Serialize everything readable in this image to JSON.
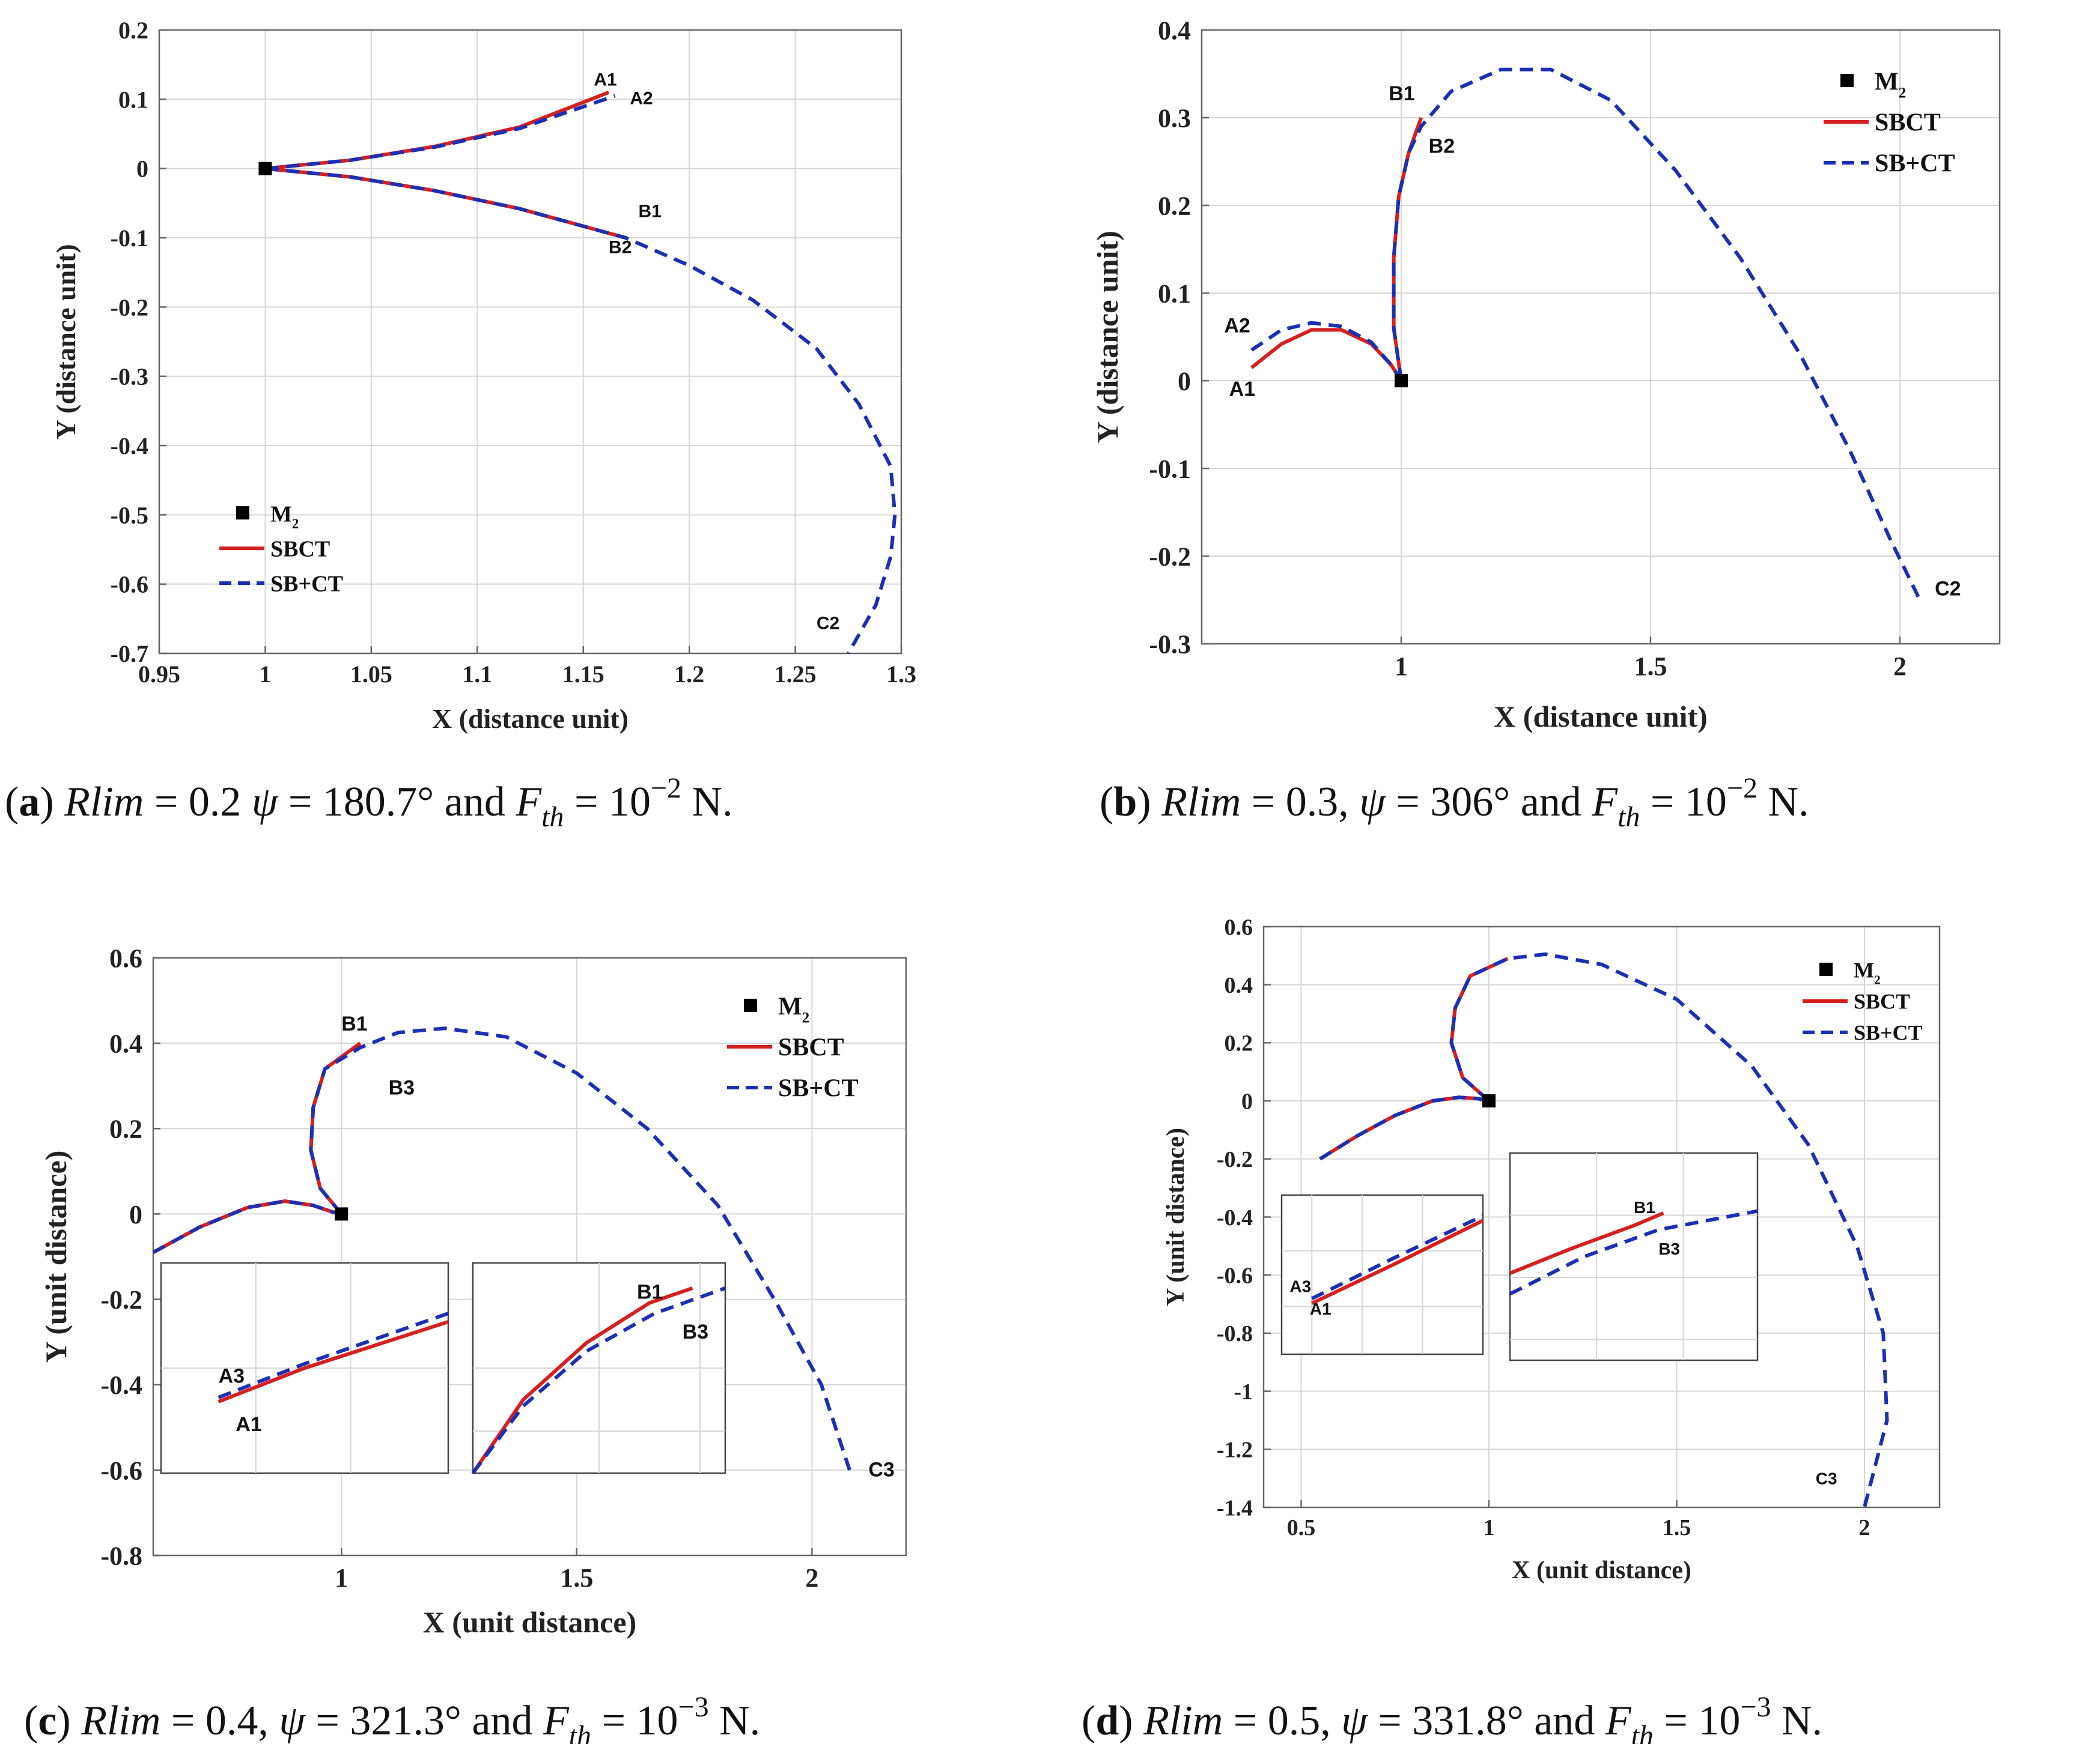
{
  "colors": {
    "sbct": "#d61f1f",
    "sbct_plus": "#1c2fb4",
    "grid": "#d6d6d6",
    "axis": "#666666",
    "marker": "#000000"
  },
  "chart_data": [
    {
      "id": "a",
      "type": "line",
      "xlabel": "X (distance unit)",
      "ylabel": "Y (distance unit)",
      "xlim": [
        0.95,
        1.3
      ],
      "ylim": [
        -0.7,
        0.2
      ],
      "xticks": [
        "0.95",
        "1",
        "1.05",
        "1.1",
        "1.15",
        "1.2",
        "1.25",
        "1.3"
      ],
      "yticks": [
        "0.2",
        "0.1",
        "0",
        "-0.1",
        "-0.2",
        "-0.3",
        "-0.4",
        "-0.5",
        "-0.6",
        "-0.7"
      ],
      "grid": true,
      "legend": {
        "position": "bottom-left",
        "marker": "M",
        "marker_sub": "2",
        "entries": [
          "SBCT",
          "SB+CT"
        ]
      },
      "marker_point": [
        1,
        0
      ],
      "series": [
        {
          "name": "SBCT",
          "segments": [
            [
              [
                1.0,
                0.0
              ],
              [
                1.04,
                0.012
              ],
              [
                1.08,
                0.032
              ],
              [
                1.12,
                0.06
              ],
              [
                1.162,
                0.11
              ]
            ],
            [
              [
                1.0,
                0.0
              ],
              [
                1.04,
                -0.012
              ],
              [
                1.08,
                -0.032
              ],
              [
                1.12,
                -0.058
              ],
              [
                1.17,
                -0.1
              ]
            ]
          ]
        },
        {
          "name": "SB+CT",
          "segments": [
            [
              [
                1.0,
                0.0
              ],
              [
                1.04,
                0.012
              ],
              [
                1.08,
                0.031
              ],
              [
                1.12,
                0.058
              ],
              [
                1.165,
                0.105
              ]
            ],
            [
              [
                1.0,
                0.0
              ],
              [
                1.04,
                -0.012
              ],
              [
                1.08,
                -0.032
              ],
              [
                1.12,
                -0.058
              ],
              [
                1.17,
                -0.1
              ],
              [
                1.2,
                -0.14
              ],
              [
                1.23,
                -0.19
              ],
              [
                1.26,
                -0.26
              ],
              [
                1.28,
                -0.34
              ],
              [
                1.295,
                -0.43
              ],
              [
                1.297,
                -0.5
              ],
              [
                1.295,
                -0.56
              ],
              [
                1.288,
                -0.63
              ],
              [
                1.275,
                -0.7
              ]
            ]
          ]
        }
      ],
      "annotations": [
        {
          "text": "A1",
          "x": 1.155,
          "y": 0.12
        },
        {
          "text": "A2",
          "x": 1.172,
          "y": 0.093
        },
        {
          "text": "B1",
          "x": 1.176,
          "y": -0.07
        },
        {
          "text": "B2",
          "x": 1.162,
          "y": -0.122
        },
        {
          "text": "C2",
          "x": 1.26,
          "y": -0.665
        }
      ],
      "caption": {
        "label": "a",
        "var": "Rlim",
        "value": "0.2",
        "psi": "180.7°",
        "and": "and",
        "fth": "F",
        "fth_sub": "th",
        "eq": "10",
        "exp": "−2",
        "unit": "N."
      }
    },
    {
      "id": "b",
      "type": "line",
      "xlabel": "X (distance unit)",
      "ylabel": "Y (distance unit)",
      "xlim": [
        0.6,
        2.2
      ],
      "ylim": [
        -0.3,
        0.4
      ],
      "xticks": [
        "1",
        "1.5",
        "2"
      ],
      "yticks": [
        "0.4",
        "0.3",
        "0.2",
        "0.1",
        "0",
        "-0.1",
        "-0.2",
        "-0.3"
      ],
      "grid": true,
      "legend": {
        "position": "top-right",
        "marker": "M",
        "marker_sub": "2",
        "entries": [
          "SBCT",
          "SB+CT"
        ]
      },
      "marker_point": [
        1,
        0
      ],
      "series": [
        {
          "name": "SBCT",
          "segments": [
            [
              [
                0.7,
                0.015
              ],
              [
                0.76,
                0.042
              ],
              [
                0.82,
                0.058
              ],
              [
                0.88,
                0.058
              ],
              [
                0.94,
                0.042
              ],
              [
                0.98,
                0.018
              ],
              [
                1.0,
                0.0
              ]
            ],
            [
              [
                1.0,
                0.0
              ],
              [
                0.985,
                0.06
              ],
              [
                0.985,
                0.14
              ],
              [
                0.995,
                0.21
              ],
              [
                1.015,
                0.26
              ],
              [
                1.04,
                0.3
              ]
            ]
          ]
        },
        {
          "name": "SB+CT",
          "segments": [
            [
              [
                0.7,
                0.035
              ],
              [
                0.76,
                0.058
              ],
              [
                0.82,
                0.066
              ],
              [
                0.88,
                0.062
              ],
              [
                0.94,
                0.044
              ],
              [
                0.98,
                0.018
              ],
              [
                1.0,
                0.0
              ]
            ],
            [
              [
                1.0,
                0.0
              ],
              [
                0.985,
                0.06
              ],
              [
                0.985,
                0.14
              ],
              [
                0.995,
                0.21
              ],
              [
                1.015,
                0.26
              ],
              [
                1.04,
                0.29
              ],
              [
                1.1,
                0.33
              ],
              [
                1.2,
                0.355
              ],
              [
                1.3,
                0.355
              ],
              [
                1.42,
                0.32
              ],
              [
                1.55,
                0.24
              ],
              [
                1.68,
                0.14
              ],
              [
                1.8,
                0.03
              ],
              [
                1.9,
                -0.08
              ],
              [
                1.98,
                -0.18
              ],
              [
                2.04,
                -0.25
              ]
            ]
          ]
        }
      ],
      "annotations": [
        {
          "text": "B1",
          "x": 0.975,
          "y": 0.32
        },
        {
          "text": "B2",
          "x": 1.055,
          "y": 0.26
        },
        {
          "text": "A2",
          "x": 0.645,
          "y": 0.055
        },
        {
          "text": "A1",
          "x": 0.655,
          "y": -0.017
        },
        {
          "text": "C2",
          "x": 2.07,
          "y": -0.245
        }
      ],
      "caption": {
        "label": "b",
        "var": "Rlim",
        "value": "0.3,",
        "psi": "306°",
        "and": "and",
        "fth": "F",
        "fth_sub": "th",
        "eq": "10",
        "exp": "−2",
        "unit": "N."
      }
    },
    {
      "id": "c",
      "type": "line",
      "xlabel": "X (unit distance)",
      "ylabel": "Y (unit distance)",
      "xlim": [
        0.6,
        2.2
      ],
      "ylim": [
        -0.8,
        0.6
      ],
      "xticks": [
        "1",
        "1.5",
        "2"
      ],
      "yticks": [
        "0.6",
        "0.4",
        "0.2",
        "0",
        "-0.2",
        "-0.4",
        "-0.6",
        "-0.8"
      ],
      "grid": true,
      "legend": {
        "position": "top-right",
        "marker": "M",
        "marker_sub": "2",
        "entries": [
          "SBCT",
          "SB+CT"
        ]
      },
      "marker_point": [
        1,
        0
      ],
      "series": [
        {
          "name": "SBCT",
          "segments": [
            [
              [
                0.6,
                -0.09
              ],
              [
                0.7,
                -0.03
              ],
              [
                0.8,
                0.015
              ],
              [
                0.88,
                0.03
              ],
              [
                0.94,
                0.02
              ],
              [
                0.98,
                0.005
              ],
              [
                1.0,
                0.0
              ]
            ],
            [
              [
                1.0,
                0.0
              ],
              [
                0.955,
                0.06
              ],
              [
                0.935,
                0.15
              ],
              [
                0.94,
                0.25
              ],
              [
                0.965,
                0.34
              ],
              [
                1.04,
                0.4
              ]
            ]
          ]
        },
        {
          "name": "SB+CT",
          "segments": [
            [
              [
                0.6,
                -0.09
              ],
              [
                0.7,
                -0.03
              ],
              [
                0.8,
                0.015
              ],
              [
                0.88,
                0.03
              ],
              [
                0.94,
                0.02
              ],
              [
                0.98,
                0.005
              ],
              [
                1.0,
                0.0
              ]
            ],
            [
              [
                1.0,
                0.0
              ],
              [
                0.955,
                0.06
              ],
              [
                0.935,
                0.15
              ],
              [
                0.94,
                0.25
              ],
              [
                0.965,
                0.34
              ],
              [
                1.04,
                0.39
              ],
              [
                1.12,
                0.425
              ],
              [
                1.22,
                0.435
              ],
              [
                1.35,
                0.415
              ],
              [
                1.5,
                0.33
              ],
              [
                1.65,
                0.2
              ],
              [
                1.8,
                0.02
              ],
              [
                1.92,
                -0.2
              ],
              [
                2.02,
                -0.4
              ],
              [
                2.08,
                -0.6
              ]
            ]
          ]
        }
      ],
      "annotations": [
        {
          "text": "B1",
          "x": 1.0,
          "y": 0.43
        },
        {
          "text": "B3",
          "x": 1.1,
          "y": 0.28
        },
        {
          "text": "C3",
          "x": 2.12,
          "y": -0.615
        }
      ],
      "insets": [
        {
          "labels": [
            {
              "text": "A3",
              "x": 0.2,
              "y": 0.57
            },
            {
              "text": "A1",
              "x": 0.26,
              "y": 0.8
            }
          ]
        },
        {
          "labels": [
            {
              "text": "B1",
              "x": 0.65,
              "y": 0.17
            },
            {
              "text": "B3",
              "x": 0.83,
              "y": 0.36
            }
          ]
        }
      ],
      "caption": {
        "label": "c",
        "var": "Rlim",
        "value": "0.4,",
        "psi": "321.3°",
        "and": "and",
        "fth": "F",
        "fth_sub": "th",
        "eq": "10",
        "exp": "−3",
        "unit": "N."
      }
    },
    {
      "id": "d",
      "type": "line",
      "xlabel": "X (unit distance)",
      "ylabel": "Y (unit distance)",
      "xlim": [
        0.4,
        2.2
      ],
      "ylim": [
        -1.4,
        0.6
      ],
      "xticks": [
        "0.5",
        "1",
        "1.5",
        "2"
      ],
      "yticks": [
        "0.6",
        "0.4",
        "0.2",
        "0",
        "-0.2",
        "-0.4",
        "-0.6",
        "-0.8",
        "-1",
        "-1.2",
        "-1.4"
      ],
      "grid": true,
      "legend": {
        "position": "top-right",
        "marker": "M",
        "marker_sub": "2",
        "entries": [
          "SBCT",
          "SB+CT"
        ]
      },
      "marker_point": [
        1,
        0
      ],
      "series": [
        {
          "name": "SBCT",
          "segments": [
            [
              [
                0.55,
                -0.2
              ],
              [
                0.65,
                -0.12
              ],
              [
                0.75,
                -0.05
              ],
              [
                0.85,
                0.0
              ],
              [
                0.92,
                0.012
              ],
              [
                0.97,
                0.008
              ],
              [
                1.0,
                0.0
              ]
            ],
            [
              [
                1.0,
                0.0
              ],
              [
                0.93,
                0.08
              ],
              [
                0.9,
                0.2
              ],
              [
                0.91,
                0.32
              ],
              [
                0.95,
                0.43
              ],
              [
                1.05,
                0.49
              ]
            ]
          ]
        },
        {
          "name": "SB+CT",
          "segments": [
            [
              [
                0.55,
                -0.2
              ],
              [
                0.65,
                -0.12
              ],
              [
                0.75,
                -0.05
              ],
              [
                0.85,
                0.0
              ],
              [
                0.92,
                0.012
              ],
              [
                0.97,
                0.008
              ],
              [
                1.0,
                0.0
              ]
            ],
            [
              [
                1.0,
                0.0
              ],
              [
                0.93,
                0.08
              ],
              [
                0.9,
                0.2
              ],
              [
                0.91,
                0.32
              ],
              [
                0.95,
                0.43
              ],
              [
                1.05,
                0.49
              ],
              [
                1.15,
                0.505
              ],
              [
                1.3,
                0.47
              ],
              [
                1.5,
                0.35
              ],
              [
                1.7,
                0.12
              ],
              [
                1.85,
                -0.15
              ],
              [
                1.98,
                -0.5
              ],
              [
                2.05,
                -0.8
              ],
              [
                2.06,
                -1.1
              ],
              [
                2.0,
                -1.4
              ]
            ]
          ]
        }
      ],
      "annotations": [
        {
          "text": "C3",
          "x": 1.87,
          "y": -1.32
        }
      ],
      "insets": [
        {
          "labels": [
            {
              "text": "A3",
              "x": 0.04,
              "y": 0.61
            },
            {
              "text": "A1",
              "x": 0.14,
              "y": 0.75
            }
          ]
        },
        {
          "labels": [
            {
              "text": "B1",
              "x": 0.5,
              "y": 0.29
            },
            {
              "text": "B3",
              "x": 0.6,
              "y": 0.49
            }
          ]
        }
      ],
      "caption": {
        "label": "d",
        "var": "Rlim",
        "value": "0.5,",
        "psi": "331.8°",
        "and": "and",
        "fth": "F",
        "fth_sub": "th",
        "eq": "10",
        "exp": "−3",
        "unit": "N."
      }
    }
  ]
}
